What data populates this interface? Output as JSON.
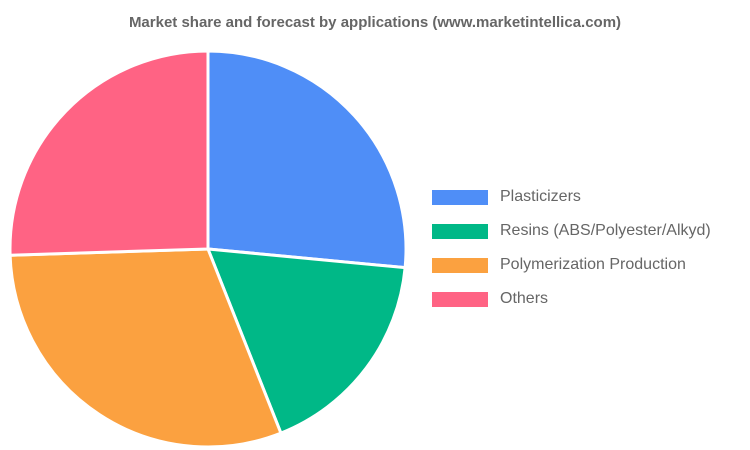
{
  "chart_data": {
    "type": "pie",
    "title": "Market share and forecast by applications (www.marketintellica.com)",
    "categories": [
      "Plasticizers",
      "Resins (ABS/Polyester/Alkyd)",
      "Polymerization Production",
      "Others"
    ],
    "values": [
      26.5,
      17.5,
      30.5,
      25.5
    ],
    "colors": [
      "#4f8ef7",
      "#00b887",
      "#fba140",
      "#ff6384"
    ],
    "legend_position": "right",
    "start_angle": "top",
    "direction": "clockwise"
  }
}
